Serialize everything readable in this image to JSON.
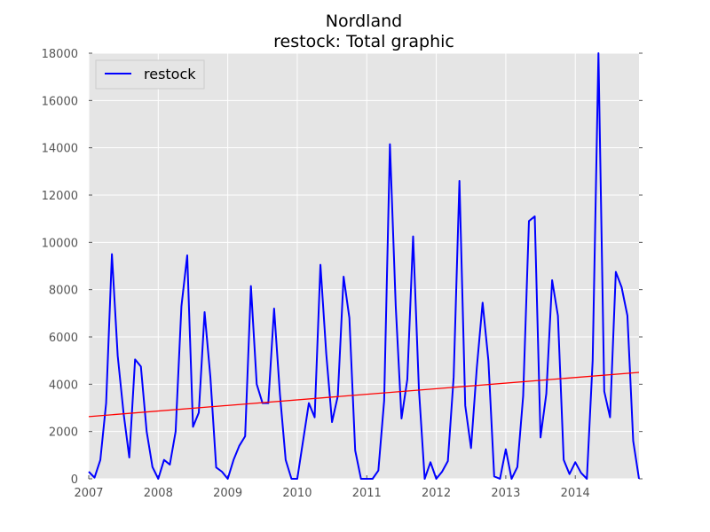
{
  "chart_data": {
    "type": "line",
    "title": "Nordland",
    "subtitle": "restock: Total graphic",
    "xlabel": "",
    "ylabel": "",
    "xlim": [
      2007.0,
      2014.9167
    ],
    "ylim": [
      0,
      18000
    ],
    "grid": true,
    "legend_position": "top-left",
    "x_ticks": [
      "2007",
      "2008",
      "2009",
      "2010",
      "2011",
      "2012",
      "2013",
      "2014"
    ],
    "y_ticks": [
      "0",
      "2000",
      "4000",
      "6000",
      "8000",
      "10000",
      "12000",
      "14000",
      "16000",
      "18000"
    ],
    "series": [
      {
        "name": "restock",
        "color": "#0000ff",
        "x": [
          2007.0,
          2007.0833,
          2007.1667,
          2007.25,
          2007.3333,
          2007.4167,
          2007.5,
          2007.5833,
          2007.6667,
          2007.75,
          2007.8333,
          2007.9167,
          2008.0,
          2008.0833,
          2008.1667,
          2008.25,
          2008.3333,
          2008.4167,
          2008.5,
          2008.5833,
          2008.6667,
          2008.75,
          2008.8333,
          2008.9167,
          2009.0,
          2009.0833,
          2009.1667,
          2009.25,
          2009.3333,
          2009.4167,
          2009.5,
          2009.5833,
          2009.6667,
          2009.75,
          2009.8333,
          2009.9167,
          2010.0,
          2010.0833,
          2010.1667,
          2010.25,
          2010.3333,
          2010.4167,
          2010.5,
          2010.5833,
          2010.6667,
          2010.75,
          2010.8333,
          2010.9167,
          2011.0,
          2011.0833,
          2011.1667,
          2011.25,
          2011.3333,
          2011.4167,
          2011.5,
          2011.5833,
          2011.6667,
          2011.75,
          2011.8333,
          2011.9167,
          2012.0,
          2012.0833,
          2012.1667,
          2012.25,
          2012.3333,
          2012.4167,
          2012.5,
          2012.5833,
          2012.6667,
          2012.75,
          2012.8333,
          2012.9167,
          2013.0,
          2013.0833,
          2013.1667,
          2013.25,
          2013.3333,
          2013.4167,
          2013.5,
          2013.5833,
          2013.6667,
          2013.75,
          2013.8333,
          2013.9167,
          2014.0,
          2014.0833,
          2014.1667,
          2014.25,
          2014.3333,
          2014.4167,
          2014.5,
          2014.5833,
          2014.6667,
          2014.75,
          2014.8333,
          2014.9167
        ],
        "values": [
          300,
          50,
          800,
          3200,
          9500,
          5200,
          2800,
          900,
          5050,
          4750,
          2000,
          500,
          0,
          800,
          600,
          2000,
          7300,
          9450,
          2200,
          2800,
          7050,
          4300,
          480,
          300,
          0,
          800,
          1400,
          1800,
          8150,
          4000,
          3200,
          3200,
          7200,
          3600,
          800,
          0,
          0,
          1600,
          3200,
          2600,
          9050,
          5300,
          2400,
          3500,
          8550,
          6800,
          1200,
          0,
          0,
          0,
          350,
          3300,
          14150,
          7300,
          2550,
          4200,
          10250,
          3800,
          0,
          700,
          0,
          300,
          750,
          4300,
          12600,
          3100,
          1300,
          4700,
          7450,
          5000,
          100,
          0,
          1250,
          0,
          500,
          3500,
          10900,
          11100,
          1750,
          3600,
          8400,
          6900,
          800,
          200,
          700,
          250,
          0,
          5000,
          18000,
          3700,
          2600,
          8750,
          8100,
          6900,
          1600,
          0
        ]
      },
      {
        "color": "#ff0000",
        "x": [
          2007.0,
          2014.9167
        ],
        "values": [
          2630,
          4500
        ]
      }
    ]
  }
}
